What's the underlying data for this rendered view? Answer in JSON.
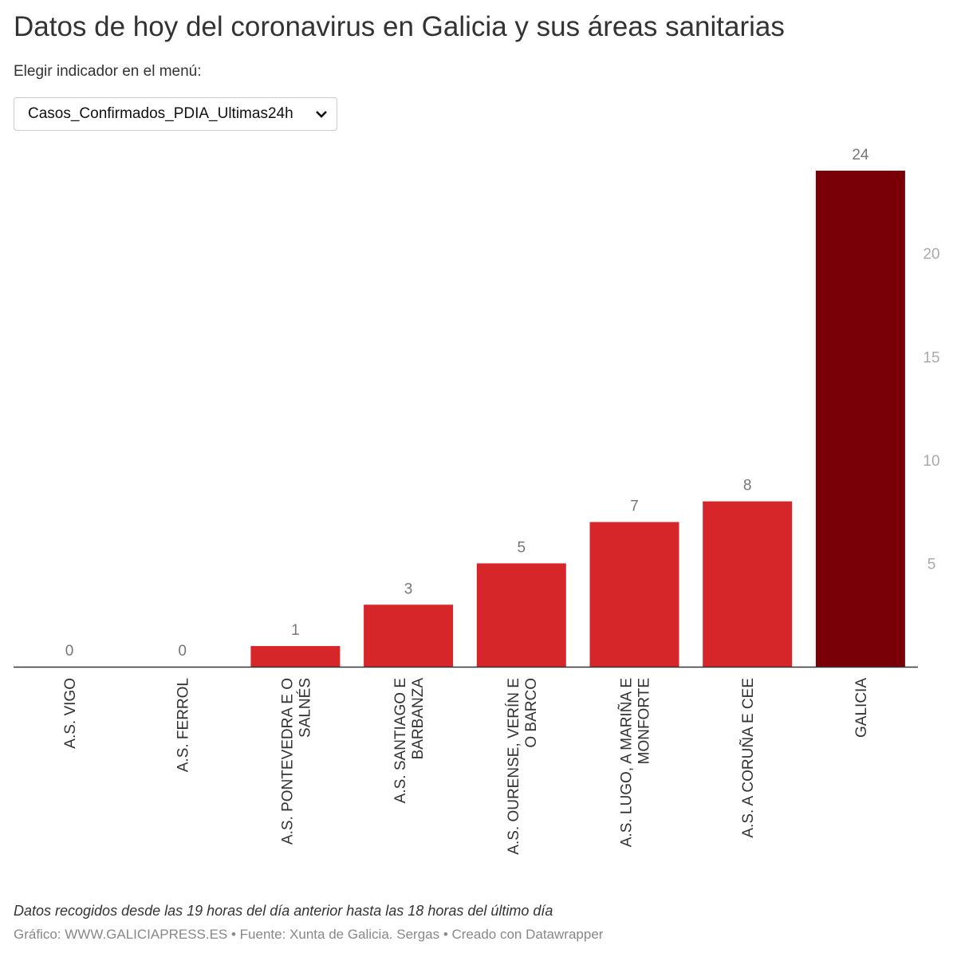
{
  "title": "Datos de hoy del coronavirus en Galicia y sus áreas sanitarias",
  "menu_label": "Elegir indicador en el menú:",
  "select": {
    "value": "Casos_Confirmados_PDIA_Ultimas24h"
  },
  "chart_data": {
    "type": "bar",
    "categories": [
      [
        "A.S. VIGO"
      ],
      [
        "A.S. FERROL"
      ],
      [
        "A.S. PONTEVEDRA E O",
        "SALNÉS"
      ],
      [
        "A.S. SANTIAGO E",
        "BARBANZA"
      ],
      [
        "A.S. OURENSE, VERÍN E",
        "O BARCO"
      ],
      [
        "A.S. LUGO, A MARIÑA E",
        "MONFORTE"
      ],
      [
        "A.S. A CORUÑA E CEE"
      ],
      [
        "GALICIA"
      ]
    ],
    "values": [
      0,
      0,
      1,
      3,
      5,
      7,
      8,
      24
    ],
    "colors": [
      "#d7262a",
      "#d7262a",
      "#d7262a",
      "#d7262a",
      "#d7262a",
      "#d7262a",
      "#d7262a",
      "#7a0008"
    ],
    "yticks": [
      5,
      10,
      15,
      20
    ],
    "ylim": [
      0,
      24
    ],
    "yaxis_position": "right",
    "grid": false
  },
  "notes": "Datos recogidos desde las 19 horas del día anterior hasta las 18 horas del último día",
  "footer": "Gráfico: WWW.GALICIAPRESS.ES • Fuente: Xunta de Galicia. Sergas • Creado con Datawrapper"
}
